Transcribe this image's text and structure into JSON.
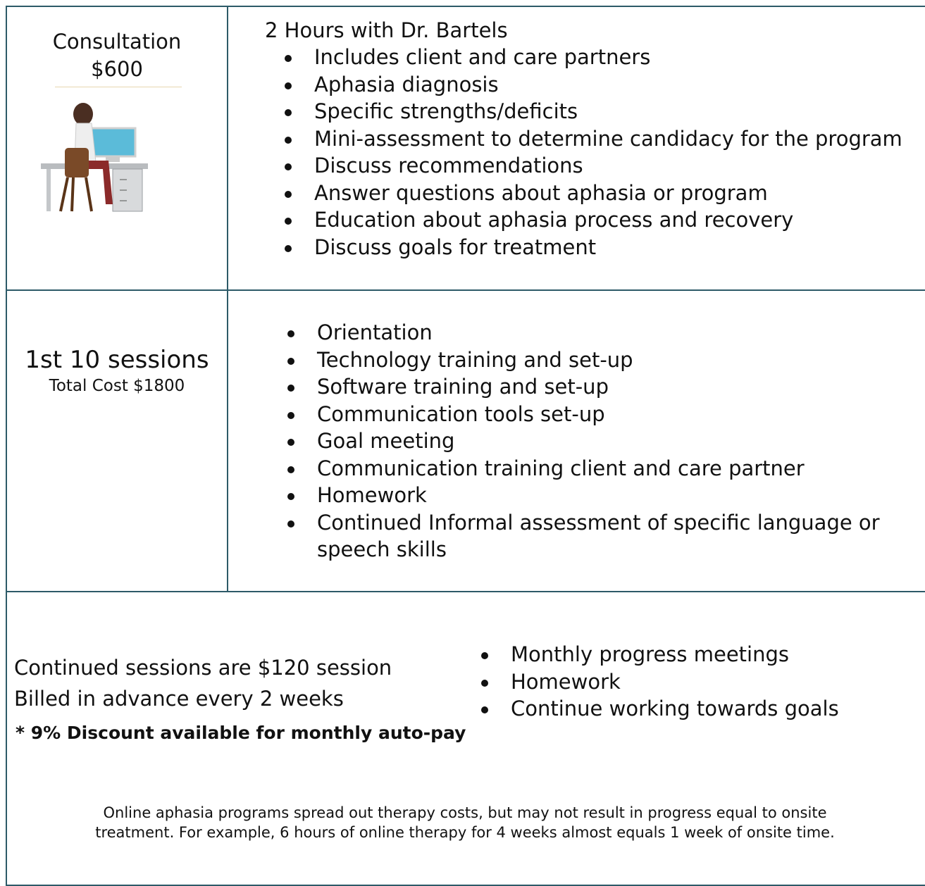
{
  "rows": [
    {
      "title": "Consultation",
      "price": "$600",
      "heading": "2 Hours with Dr. Bartels",
      "items": [
        "Includes client and care partners",
        "Aphasia diagnosis",
        "Specific strengths/deficits",
        "Mini-assessment to determine candidacy for the program",
        "Discuss recommendations",
        "Answer questions about aphasia or program",
        "Education about aphasia process and recovery",
        "Discuss goals for treatment"
      ]
    },
    {
      "title": "1st 10 sessions",
      "price": "Total Cost $1800",
      "items": [
        "Orientation",
        "Technology training and set-up",
        "Software training and set-up",
        "Communication tools set-up",
        "Goal meeting",
        "Communication training client and care partner",
        "Homework",
        "Continued Informal assessment of specific language or speech skills"
      ]
    }
  ],
  "continued": {
    "lines": [
      "Continued sessions are $120 session",
      "Billed in advance every 2 weeks"
    ],
    "discount": "* 9% Discount available for monthly auto-pay",
    "items": [
      "Monthly progress meetings",
      "Homework",
      "Continue working towards goals"
    ]
  },
  "footnote": [
    "Online aphasia programs spread out therapy costs, but may not result in progress equal to onsite",
    "treatment. For example, 6 hours of online therapy for 4 weeks almost equals 1 week of onsite time."
  ]
}
